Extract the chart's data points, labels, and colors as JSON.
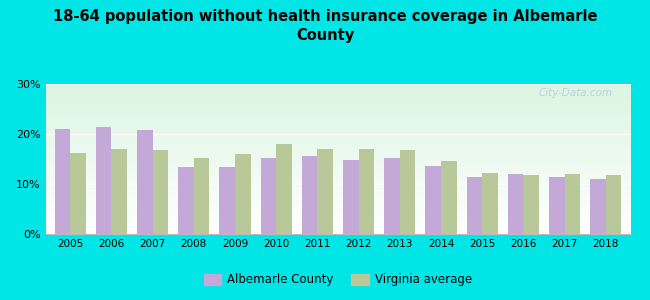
{
  "title": "18-64 population without health insurance coverage in Albemarle\nCounty",
  "years": [
    2005,
    2006,
    2007,
    2008,
    2009,
    2010,
    2011,
    2012,
    2013,
    2014,
    2015,
    2016,
    2017,
    2018
  ],
  "albemarle": [
    21.0,
    21.5,
    20.8,
    13.5,
    13.5,
    15.3,
    15.7,
    14.8,
    15.2,
    13.7,
    11.5,
    12.0,
    11.4,
    11.0
  ],
  "virginia": [
    16.2,
    17.0,
    16.8,
    15.3,
    16.0,
    18.0,
    17.0,
    17.0,
    16.9,
    14.7,
    12.2,
    11.8,
    12.0,
    11.8
  ],
  "albemarle_color": "#c3a8d8",
  "virginia_color": "#b8c898",
  "background_color": "#00e5e5",
  "ylim": [
    0,
    30
  ],
  "yticks": [
    0,
    10,
    20,
    30
  ],
  "legend_albemarle": "Albemarle County",
  "legend_virginia": "Virginia average",
  "watermark": "City-Data.com"
}
